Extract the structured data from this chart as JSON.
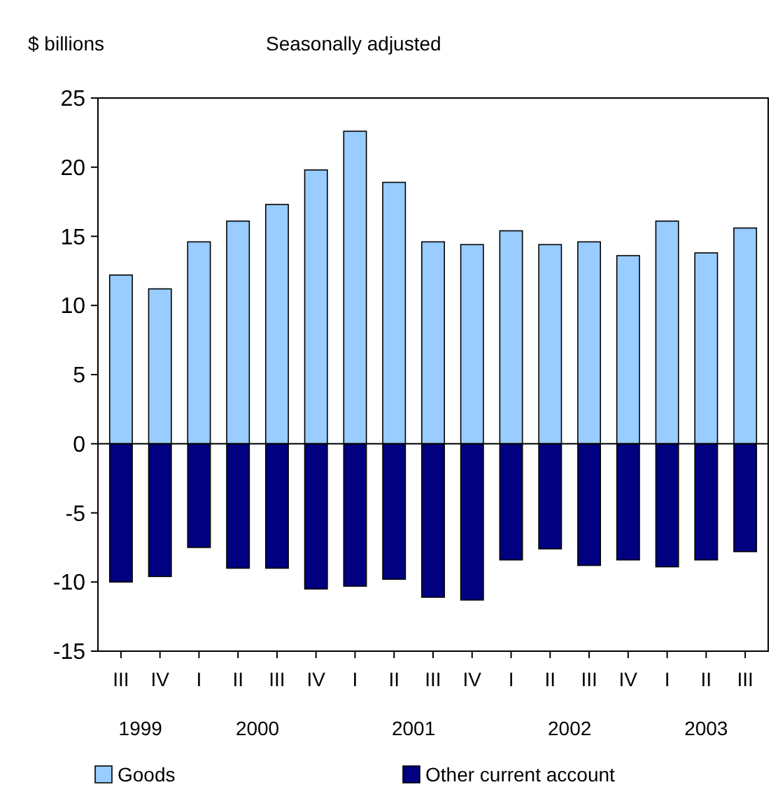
{
  "chart_data": {
    "type": "bar",
    "ylabel": "$ billions",
    "subtitle": "Seasonally adjusted",
    "categories": [
      "III",
      "IV",
      "I",
      "II",
      "III",
      "IV",
      "I",
      "II",
      "III",
      "IV",
      "I",
      "II",
      "III",
      "IV",
      "I",
      "II",
      "III"
    ],
    "series": [
      {
        "name": "Goods",
        "color": "#99ccff",
        "values": [
          12.2,
          11.2,
          14.6,
          16.1,
          17.3,
          19.8,
          22.6,
          18.9,
          14.6,
          14.4,
          15.4,
          14.4,
          14.6,
          13.6,
          16.1,
          13.8,
          15.6
        ]
      },
      {
        "name": "Other current account",
        "color": "#000080",
        "values": [
          -10.0,
          -9.6,
          -7.5,
          -9.0,
          -9.0,
          -10.5,
          -10.3,
          -9.8,
          -11.1,
          -11.3,
          -8.4,
          -7.6,
          -8.8,
          -8.4,
          -8.9,
          -8.4,
          -7.8
        ]
      }
    ],
    "stacked": true,
    "annotations": [
      "1999",
      "2000",
      "2001",
      "2002",
      "2003"
    ],
    "ylim": [
      -15,
      25
    ],
    "yticks": [
      -15,
      -10,
      -5,
      0,
      5,
      10,
      15,
      20,
      25
    ],
    "legend": "bottom"
  }
}
